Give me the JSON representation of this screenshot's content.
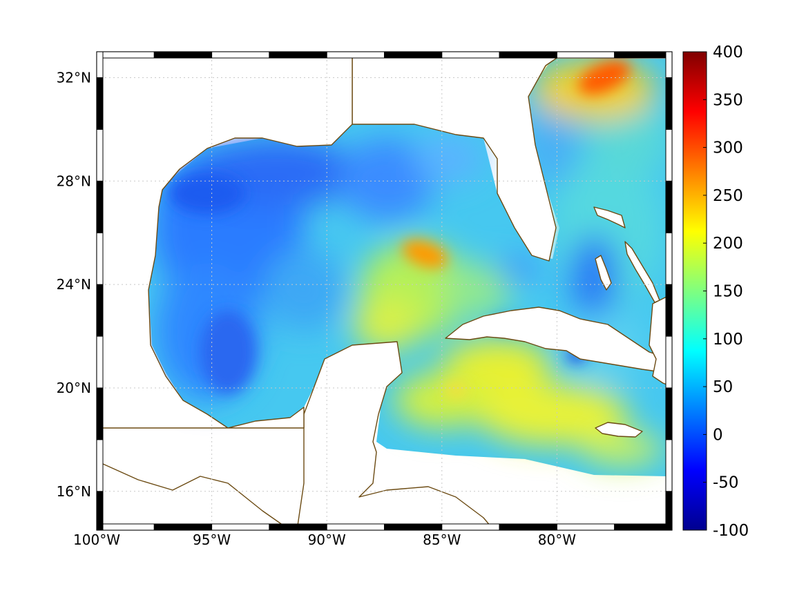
{
  "map": {
    "region": "Gulf of Mexico and western Caribbean",
    "lon_range": [
      -100,
      -75
    ],
    "lat_range": [
      14.5,
      33
    ],
    "lon_ticks": [
      {
        "lon": -100,
        "label": "100°W"
      },
      {
        "lon": -95,
        "label": "95°W"
      },
      {
        "lon": -90,
        "label": "90°W"
      },
      {
        "lon": -85,
        "label": "85°W"
      },
      {
        "lon": -80,
        "label": "80°W"
      }
    ],
    "lat_ticks": [
      {
        "lat": 32,
        "label": "32°N"
      },
      {
        "lat": 28,
        "label": "28°N"
      },
      {
        "lat": 24,
        "label": "24°N"
      },
      {
        "lat": 20,
        "label": "20°N"
      },
      {
        "lat": 16,
        "label": "16°N"
      }
    ],
    "grid": true,
    "coastline_color": "#6b4a12"
  },
  "colorbar": {
    "colormap": "jet",
    "range": [
      -100,
      400
    ],
    "ticks": [
      {
        "value": 400,
        "label": "400"
      },
      {
        "value": 350,
        "label": "350"
      },
      {
        "value": 300,
        "label": "300"
      },
      {
        "value": 250,
        "label": "250"
      },
      {
        "value": 200,
        "label": "200"
      },
      {
        "value": 150,
        "label": "150"
      },
      {
        "value": 100,
        "label": "100"
      },
      {
        "value": 50,
        "label": "50"
      },
      {
        "value": 0,
        "label": "0"
      },
      {
        "value": -50,
        "label": "-50"
      },
      {
        "value": -100,
        "label": "-100"
      }
    ]
  },
  "field_features": [
    {
      "name": "northwest-gulf-low",
      "lon": -95,
      "lat": 26,
      "value": 20
    },
    {
      "name": "loop-current-eddy-high",
      "lon": -86.5,
      "lat": 25.3,
      "value": 265
    },
    {
      "name": "gulf-stream-high",
      "lon": -77.5,
      "lat": 31.8,
      "value": 320
    },
    {
      "name": "caribbean-high",
      "lon": -82.5,
      "lat": 21,
      "value": 195
    },
    {
      "name": "bahamas-low",
      "lon": -77.5,
      "lat": 23.5,
      "value": 35
    }
  ]
}
